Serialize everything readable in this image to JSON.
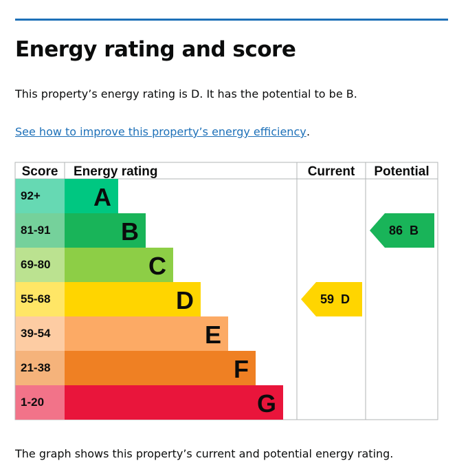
{
  "heading": "Energy rating and score",
  "summary": "This property’s energy rating is D. It has the potential to be B.",
  "improve_link": "See how to improve this property’s energy efficiency",
  "improve_link_tail": ".",
  "caption": "The graph shows this property’s current and potential energy rating.",
  "colors": {
    "rule": "#1d70b8",
    "link": "#1d70b8",
    "grid": "#b1b4b6"
  },
  "chart_data": {
    "type": "table",
    "columns": [
      "Score",
      "Energy rating",
      "Current",
      "Potential"
    ],
    "bands": [
      {
        "score": "92+",
        "letter": "A",
        "color": "#008054",
        "bar_color": "#00c781",
        "score_bg": "#66d9b3"
      },
      {
        "score": "81-91",
        "letter": "B",
        "color": "#19b459",
        "bar_color": "#19b459",
        "score_bg": "#75d19b"
      },
      {
        "score": "69-80",
        "letter": "C",
        "color": "#8dce46",
        "bar_color": "#8dce46",
        "score_bg": "#bbe290"
      },
      {
        "score": "55-68",
        "letter": "D",
        "color": "#ffd500",
        "bar_color": "#ffd500",
        "score_bg": "#ffe666"
      },
      {
        "score": "39-54",
        "letter": "E",
        "color": "#fcaa65",
        "bar_color": "#fcaa65",
        "score_bg": "#fdcca3"
      },
      {
        "score": "21-38",
        "letter": "F",
        "color": "#ef8023",
        "bar_color": "#ef8023",
        "score_bg": "#f5b37b"
      },
      {
        "score": "1-20",
        "letter": "G",
        "color": "#e9153b",
        "bar_color": "#e9153b",
        "score_bg": "#f27389"
      }
    ],
    "current": {
      "score": 59,
      "letter": "D",
      "label": "59  D",
      "color": "#ffd500",
      "text_color": "#0b0c0c"
    },
    "potential": {
      "score": 86,
      "letter": "B",
      "label": "86  B",
      "color": "#19b459",
      "text_color": "#0b0c0c"
    }
  }
}
